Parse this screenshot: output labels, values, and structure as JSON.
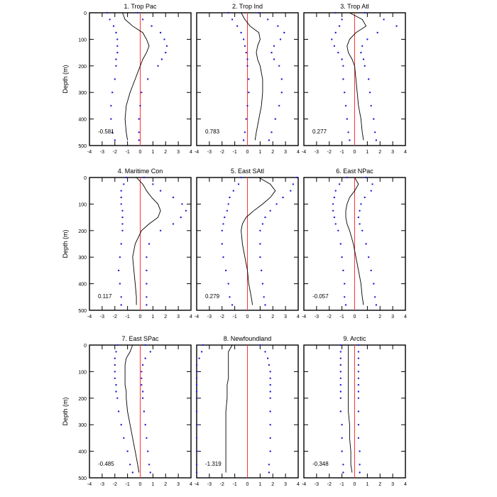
{
  "figure": {
    "ylabel": "Depth (m)",
    "xticks": [
      "-4",
      "-3",
      "-2",
      "-1",
      "0",
      "1",
      "2",
      "3",
      "4"
    ],
    "yticks": [
      "0",
      "100",
      "200",
      "300",
      "400",
      "500"
    ],
    "colors": {
      "mean": "#000000",
      "bounds": "#1f1fd6",
      "zero": "#ff3333"
    }
  },
  "chart_data": [
    {
      "type": "line",
      "panel": 1,
      "title": "1. Trop Pac",
      "value_label": "-0.581",
      "xlim": [
        -4,
        4
      ],
      "ylim": [
        500,
        0
      ],
      "depth": [
        0,
        25,
        50,
        75,
        100,
        125,
        150,
        175,
        200,
        250,
        300,
        350,
        400,
        450,
        480
      ],
      "mean": [
        -1.4,
        -1.2,
        -0.6,
        0.2,
        0.5,
        0.7,
        0.5,
        0.2,
        0.0,
        -0.4,
        -0.8,
        -1.1,
        -1.2,
        -1.1,
        -1.0
      ],
      "lower": [
        -2.6,
        -2.4,
        -2.1,
        -1.9,
        -1.8,
        -1.8,
        -1.8,
        -1.9,
        -1.9,
        -2.0,
        -2.2,
        -2.3,
        -2.3,
        -2.2,
        -2.0
      ],
      "upper": [
        -0.2,
        0.2,
        0.9,
        1.6,
        1.9,
        2.1,
        2.0,
        1.7,
        1.4,
        0.6,
        0.1,
        0.0,
        -0.1,
        -0.1,
        -0.1
      ]
    },
    {
      "type": "line",
      "panel": 2,
      "title": "2. Trop Ind",
      "value_label": "0.783",
      "xlim": [
        -4,
        4
      ],
      "ylim": [
        500,
        0
      ],
      "depth": [
        0,
        25,
        50,
        75,
        100,
        125,
        150,
        175,
        200,
        250,
        300,
        350,
        400,
        450,
        480
      ],
      "mean": [
        -0.5,
        -0.2,
        0.2,
        0.9,
        1.0,
        0.8,
        0.7,
        0.8,
        1.0,
        1.2,
        1.2,
        1.1,
        0.9,
        0.7,
        0.6
      ],
      "lower": [
        -1.5,
        -1.2,
        -0.8,
        -0.5,
        -0.3,
        -0.2,
        -0.1,
        0.0,
        0.0,
        0.1,
        0.1,
        0.0,
        -0.1,
        -0.2,
        -0.3
      ],
      "upper": [
        0.9,
        1.6,
        2.4,
        2.9,
        2.6,
        2.1,
        1.9,
        2.1,
        2.5,
        2.7,
        2.7,
        2.5,
        2.2,
        1.9,
        1.7
      ]
    },
    {
      "type": "line",
      "panel": 3,
      "title": "3. Trop Atl",
      "value_label": "0.277",
      "xlim": [
        -4,
        4
      ],
      "ylim": [
        500,
        0
      ],
      "depth": [
        0,
        25,
        50,
        75,
        100,
        125,
        150,
        175,
        200,
        250,
        300,
        350,
        400,
        450,
        480
      ],
      "mean": [
        -0.4,
        0.6,
        0.9,
        0.1,
        -0.4,
        -0.6,
        -0.5,
        -0.2,
        0.0,
        0.1,
        0.2,
        0.3,
        0.5,
        0.6,
        0.7
      ],
      "lower": [
        -1.5,
        -1.0,
        -1.2,
        -1.5,
        -1.8,
        -1.6,
        -1.3,
        -1.0,
        -0.9,
        -0.9,
        -0.8,
        -0.7,
        -0.6,
        -0.5,
        -0.4
      ],
      "upper": [
        0.8,
        2.3,
        3.3,
        1.8,
        1.0,
        0.6,
        0.5,
        0.7,
        0.8,
        1.1,
        1.2,
        1.3,
        1.5,
        1.6,
        1.7
      ]
    },
    {
      "type": "line",
      "panel": 4,
      "title": "4. Maritime Con",
      "value_label": "0.117",
      "xlim": [
        -4,
        4
      ],
      "ylim": [
        500,
        0
      ],
      "depth": [
        0,
        25,
        50,
        75,
        100,
        125,
        150,
        175,
        200,
        250,
        300,
        350,
        400,
        450,
        480
      ],
      "mean": [
        -0.3,
        0.2,
        0.5,
        0.9,
        1.4,
        1.6,
        1.4,
        0.7,
        0.1,
        -0.4,
        -0.6,
        -0.5,
        -0.4,
        -0.3,
        -0.3
      ],
      "lower": [
        -1.1,
        -1.3,
        -1.5,
        -1.5,
        -1.5,
        -1.4,
        -1.4,
        -1.4,
        -1.4,
        -1.5,
        -1.6,
        -1.7,
        -1.6,
        -1.5,
        -1.5
      ],
      "upper": [
        0.3,
        1.0,
        1.6,
        2.6,
        3.3,
        3.6,
        3.2,
        2.6,
        1.6,
        0.7,
        0.5,
        0.5,
        0.5,
        0.5,
        0.5
      ]
    },
    {
      "type": "line",
      "panel": 5,
      "title": "5. East SAtl",
      "value_label": "0.279",
      "xlim": [
        -4,
        4
      ],
      "ylim": [
        500,
        0
      ],
      "depth": [
        0,
        25,
        50,
        75,
        100,
        125,
        150,
        175,
        200,
        250,
        300,
        350,
        400,
        450,
        480
      ],
      "mean": [
        0.9,
        1.8,
        2.2,
        1.8,
        1.2,
        0.5,
        -0.1,
        -0.4,
        -0.5,
        -0.4,
        -0.2,
        0.0,
        0.1,
        0.3,
        0.4
      ],
      "lower": [
        -0.5,
        -0.7,
        -1.1,
        -1.4,
        -1.5,
        -1.6,
        -1.8,
        -1.9,
        -2.0,
        -2.0,
        -1.9,
        -1.7,
        -1.5,
        -1.4,
        -1.2
      ],
      "upper": [
        3.9,
        3.6,
        3.4,
        2.8,
        2.3,
        1.8,
        1.4,
        1.2,
        1.0,
        1.0,
        1.0,
        1.1,
        1.2,
        1.3,
        1.4
      ]
    },
    {
      "type": "line",
      "panel": 6,
      "title": "6. East NPac",
      "value_label": "-0.057",
      "xlim": [
        -4,
        4
      ],
      "ylim": [
        500,
        0
      ],
      "depth": [
        0,
        25,
        50,
        75,
        100,
        125,
        150,
        175,
        200,
        250,
        300,
        350,
        400,
        450,
        480
      ],
      "mean": [
        0.0,
        0.3,
        0.0,
        -0.4,
        -0.6,
        -0.7,
        -0.7,
        -0.6,
        -0.4,
        -0.1,
        0.1,
        0.3,
        0.5,
        0.6,
        0.7
      ],
      "lower": [
        -0.6,
        -1.2,
        -1.5,
        -1.6,
        -1.7,
        -1.7,
        -1.6,
        -1.5,
        -1.3,
        -1.1,
        -1.0,
        -0.9,
        -0.8,
        -0.8,
        -0.7
      ],
      "upper": [
        0.9,
        1.4,
        1.3,
        0.8,
        0.5,
        0.4,
        0.3,
        0.4,
        0.6,
        0.9,
        1.1,
        1.3,
        1.5,
        1.6,
        1.7
      ]
    },
    {
      "type": "line",
      "panel": 7,
      "title": "7. East SPac",
      "value_label": "-0.485",
      "xlim": [
        -4,
        4
      ],
      "ylim": [
        500,
        0
      ],
      "depth": [
        0,
        25,
        50,
        75,
        100,
        125,
        150,
        175,
        200,
        250,
        300,
        350,
        400,
        450,
        480
      ],
      "mean": [
        -0.6,
        -0.8,
        -1.1,
        -1.2,
        -1.2,
        -1.2,
        -1.2,
        -1.1,
        -1.1,
        -1.0,
        -0.8,
        -0.6,
        -0.4,
        -0.2,
        -0.1
      ],
      "lower": [
        -1.8,
        -1.9,
        -2.0,
        -2.0,
        -2.0,
        -2.0,
        -1.9,
        -1.9,
        -1.8,
        -1.7,
        -1.5,
        -1.3,
        -1.0,
        -0.8,
        -0.6
      ],
      "upper": [
        0.4,
        0.8,
        0.4,
        0.2,
        0.1,
        0.1,
        0.1,
        0.2,
        0.2,
        0.3,
        0.4,
        0.5,
        0.6,
        0.7,
        0.8
      ]
    },
    {
      "type": "line",
      "panel": 8,
      "title": "8. Newfoundland",
      "value_label": "-1.319",
      "xlim": [
        -4,
        4
      ],
      "ylim": [
        500,
        0
      ],
      "depth": [
        0,
        25,
        50,
        75,
        100,
        125,
        150,
        175,
        200,
        250,
        300,
        350,
        400,
        450,
        480
      ],
      "mean": [
        -1.2,
        -1.5,
        -1.5,
        -1.5,
        -1.5,
        -1.5,
        -1.6,
        -1.6,
        -1.6,
        -1.7,
        -1.7,
        -1.7,
        -1.7,
        -1.7,
        -1.7
      ],
      "lower": [
        -3.5,
        -3.6,
        -3.8,
        -4.0,
        -4.0,
        -4.0,
        -4.0,
        -4.0,
        -4.0,
        -4.0,
        -4.0,
        -4.0,
        -4.0,
        -4.0,
        -4.0
      ],
      "upper": [
        1.0,
        1.4,
        1.6,
        1.7,
        1.8,
        1.8,
        1.8,
        1.8,
        1.8,
        1.8,
        1.8,
        1.8,
        1.8,
        1.7,
        1.7
      ]
    },
    {
      "type": "line",
      "panel": 9,
      "title": "9. Arctic",
      "value_label": "-0.348",
      "xlim": [
        -4,
        4
      ],
      "ylim": [
        500,
        0
      ],
      "depth": [
        0,
        25,
        50,
        75,
        100,
        125,
        150,
        175,
        200,
        250,
        300,
        350,
        400,
        450,
        480
      ],
      "mean": [
        -0.5,
        -0.5,
        -0.5,
        -0.5,
        -0.5,
        -0.5,
        -0.5,
        -0.5,
        -0.5,
        -0.5,
        -0.4,
        -0.4,
        -0.3,
        -0.3,
        -0.2
      ],
      "lower": [
        -1.1,
        -1.1,
        -1.1,
        -1.1,
        -1.1,
        -1.1,
        -1.1,
        -1.1,
        -1.1,
        -1.1,
        -1.0,
        -1.0,
        -1.0,
        -0.9,
        -0.9
      ],
      "upper": [
        0.3,
        0.3,
        0.3,
        0.3,
        0.3,
        0.3,
        0.3,
        0.3,
        0.3,
        0.3,
        0.3,
        0.3,
        0.4,
        0.4,
        0.4
      ]
    }
  ]
}
